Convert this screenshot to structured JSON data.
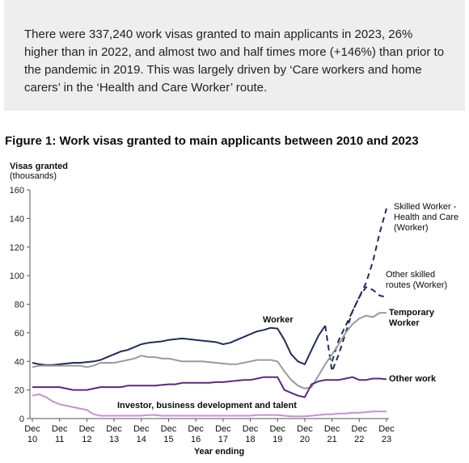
{
  "intro": "There were 337,240 work visas granted to main applicants in 2023, 26% higher than in 2022, and almost two and half times more (+146%) than prior to the pandemic in 2019. This was largely driven by ‘Care workers and home carers’ in the ‘Health and Care Worker’ route.",
  "chart_data": {
    "type": "line",
    "title": "Figure 1: Work visas granted to main applicants between 2010 and 2023",
    "y_label": "Visas granted",
    "y_unit": "(thousands)",
    "x_label": "Year ending",
    "categories": [
      "Dec 10",
      null,
      null,
      null,
      "Dec 11",
      null,
      null,
      null,
      "Dec 12",
      null,
      null,
      null,
      "Dec 13",
      null,
      null,
      null,
      "Dec 14",
      null,
      null,
      null,
      "Dec 15",
      null,
      null,
      null,
      "Dec 16",
      null,
      null,
      null,
      "Dec 17",
      null,
      null,
      null,
      "Dec 18",
      null,
      null,
      null,
      "Dec 19",
      null,
      null,
      null,
      "Dec 20",
      null,
      null,
      null,
      "Dec 21",
      null,
      null,
      null,
      "Dec 22",
      null,
      null,
      null,
      "Dec 23"
    ],
    "ylim": [
      0,
      160
    ],
    "yticks": [
      0,
      20,
      40,
      60,
      80,
      100,
      120,
      140,
      160
    ],
    "grid": false,
    "series": [
      {
        "name": "Worker",
        "color": "#1f2d5c",
        "dashed": false,
        "values": [
          39,
          38,
          37.5,
          37.5,
          38,
          38.5,
          39,
          39,
          39.5,
          40,
          41,
          43,
          45,
          47,
          48,
          50,
          52,
          53,
          53.5,
          54,
          55,
          55.5,
          56,
          55.5,
          55,
          54.5,
          54,
          53.5,
          52,
          53,
          55,
          57,
          59,
          61,
          62,
          63.5,
          63,
          55,
          45,
          40,
          38,
          48,
          58,
          65,
          null,
          null,
          null,
          null,
          null,
          null,
          null,
          null,
          null
        ]
      },
      {
        "name": "Skilled Worker - Health and Care (Worker)",
        "color": "#1f2d5c",
        "dashed": true,
        "values": [
          null,
          null,
          null,
          null,
          null,
          null,
          null,
          null,
          null,
          null,
          null,
          null,
          null,
          null,
          null,
          null,
          null,
          null,
          null,
          null,
          null,
          null,
          null,
          null,
          null,
          null,
          null,
          null,
          null,
          null,
          null,
          null,
          null,
          null,
          null,
          null,
          null,
          null,
          null,
          null,
          null,
          null,
          null,
          65,
          33,
          45,
          60,
          75,
          85,
          95,
          110,
          130,
          147
        ]
      },
      {
        "name": "Other skilled routes (Worker)",
        "color": "#1f2d5c",
        "dashed": true,
        "values": [
          null,
          null,
          null,
          null,
          null,
          null,
          null,
          null,
          null,
          null,
          null,
          null,
          null,
          null,
          null,
          null,
          null,
          null,
          null,
          null,
          null,
          null,
          null,
          null,
          null,
          null,
          null,
          null,
          null,
          null,
          null,
          null,
          null,
          null,
          null,
          null,
          null,
          null,
          null,
          null,
          null,
          null,
          null,
          null,
          40,
          55,
          65,
          75,
          85,
          92,
          90,
          86,
          85
        ]
      },
      {
        "name": "Temporary Worker",
        "color": "#9a9a9a",
        "dashed": false,
        "values": [
          36,
          37,
          37,
          37,
          37,
          37,
          37,
          37,
          36,
          37,
          39,
          39,
          39,
          40,
          41,
          42,
          44,
          43,
          43,
          42,
          42,
          41,
          40,
          40,
          40,
          40,
          39.5,
          39,
          38.5,
          38,
          38,
          39,
          40,
          41,
          41,
          41,
          40,
          33,
          27,
          23,
          21,
          22,
          30,
          38,
          45,
          52,
          60,
          66,
          70,
          72,
          71,
          74,
          74
        ]
      },
      {
        "name": "Other work",
        "color": "#5a2a7e",
        "dashed": false,
        "values": [
          22,
          22,
          22,
          22,
          22,
          21,
          20,
          20,
          20,
          21,
          22,
          22,
          22,
          22,
          23,
          23,
          23,
          23,
          23,
          23.5,
          24,
          24,
          25,
          25,
          25,
          25,
          25,
          25.5,
          25.5,
          26,
          26.5,
          27,
          27,
          28,
          29,
          29,
          29,
          20,
          18,
          16,
          15,
          24,
          26,
          27,
          27,
          27,
          28,
          29,
          27,
          27,
          28,
          28,
          27.5
        ]
      },
      {
        "name": "Investor, business development and talent",
        "color": "#c690d8",
        "dashed": false,
        "values": [
          16,
          17,
          15,
          12,
          10,
          9,
          8,
          7,
          6,
          3,
          2,
          2,
          2,
          2,
          2,
          2,
          2,
          2.5,
          2.5,
          2,
          2,
          2,
          2,
          2,
          2,
          2,
          2,
          2,
          2,
          2,
          2,
          2,
          2,
          2.5,
          2.5,
          2.5,
          2.5,
          2,
          1.5,
          1.5,
          1.5,
          2,
          2.5,
          3,
          3,
          3.5,
          3.5,
          4,
          4,
          4.5,
          5,
          5,
          5
        ]
      }
    ]
  }
}
